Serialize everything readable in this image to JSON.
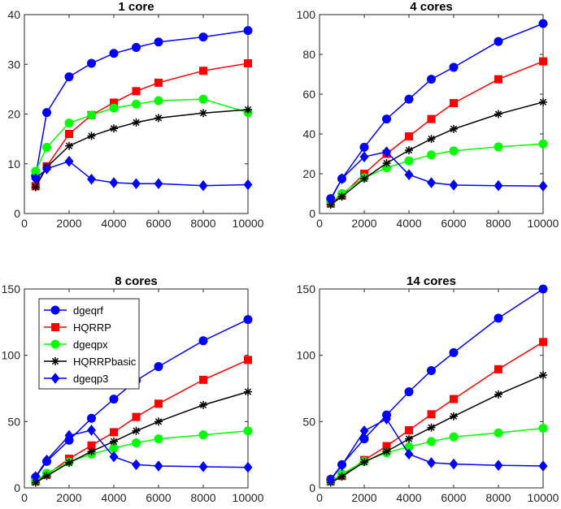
{
  "chart_data": [
    {
      "type": "line",
      "title": "1 core",
      "x": [
        500,
        1000,
        2000,
        3000,
        4000,
        5000,
        6000,
        8000,
        10000
      ],
      "xlim": [
        0,
        10000
      ],
      "ylim": [
        0,
        40
      ],
      "xticks": [
        0,
        2000,
        4000,
        6000,
        8000,
        10000
      ],
      "yticks": [
        0,
        10,
        20,
        30,
        40
      ],
      "xlabel": "",
      "ylabel": "",
      "grid": false,
      "series": [
        {
          "name": "dgeqrf",
          "color": "#0000ff",
          "marker": "circle",
          "values": [
            7.5,
            20.3,
            27.5,
            30.2,
            32.2,
            33.4,
            34.5,
            35.5,
            36.8
          ]
        },
        {
          "name": "HQRRP",
          "color": "#ff0000",
          "marker": "square",
          "values": [
            5.5,
            9.5,
            16.0,
            19.8,
            22.3,
            24.6,
            26.3,
            28.7,
            30.2
          ]
        },
        {
          "name": "dgeqpx",
          "color": "#00ff00",
          "marker": "circle",
          "values": [
            8.5,
            13.3,
            18.2,
            19.8,
            21.2,
            22.0,
            22.7,
            23.0,
            20.3
          ]
        },
        {
          "name": "HQRRPbasic",
          "color": "#000000",
          "marker": "asterisk",
          "values": [
            5.3,
            9.3,
            13.6,
            15.6,
            17.1,
            18.3,
            19.2,
            20.2,
            20.9
          ]
        },
        {
          "name": "dgeqp3",
          "color": "#0000ff",
          "marker": "diamond",
          "values": [
            7.0,
            9.0,
            10.5,
            6.9,
            6.2,
            6.0,
            6.0,
            5.6,
            5.8
          ]
        }
      ]
    },
    {
      "type": "line",
      "title": "4 cores",
      "x": [
        500,
        1000,
        2000,
        3000,
        4000,
        5000,
        6000,
        8000,
        10000
      ],
      "xlim": [
        0,
        10000
      ],
      "ylim": [
        0,
        100
      ],
      "xticks": [
        0,
        2000,
        4000,
        6000,
        8000,
        10000
      ],
      "yticks": [
        0,
        20,
        40,
        60,
        80,
        100
      ],
      "xlabel": "",
      "ylabel": "",
      "grid": false,
      "series": [
        {
          "name": "dgeqrf",
          "color": "#0000ff",
          "marker": "circle",
          "values": [
            7.5,
            17.5,
            33.3,
            47.5,
            57.5,
            67.5,
            73.5,
            86.5,
            95.5
          ]
        },
        {
          "name": "HQRRP",
          "color": "#ff0000",
          "marker": "square",
          "values": [
            5.0,
            9.0,
            20.0,
            30.0,
            38.8,
            47.5,
            55.5,
            67.5,
            76.5
          ]
        },
        {
          "name": "dgeqpx",
          "color": "#00ff00",
          "marker": "circle",
          "values": [
            5.5,
            10.0,
            18.0,
            23.0,
            26.5,
            29.5,
            31.5,
            33.5,
            35.0
          ]
        },
        {
          "name": "HQRRPbasic",
          "color": "#000000",
          "marker": "asterisk",
          "values": [
            4.5,
            8.5,
            17.5,
            25.3,
            31.8,
            37.5,
            42.5,
            50.0,
            56.0
          ]
        },
        {
          "name": "dgeqp3",
          "color": "#0000ff",
          "marker": "diamond",
          "values": [
            7.0,
            17.5,
            28.5,
            31.0,
            19.5,
            15.5,
            14.3,
            14.0,
            13.8
          ]
        }
      ]
    },
    {
      "type": "line",
      "title": "8 cores",
      "x": [
        500,
        1000,
        2000,
        3000,
        4000,
        5000,
        6000,
        8000,
        10000
      ],
      "xlim": [
        0,
        10000
      ],
      "ylim": [
        0,
        150
      ],
      "xticks": [
        0,
        2000,
        4000,
        6000,
        8000,
        10000
      ],
      "yticks": [
        0,
        50,
        100,
        150
      ],
      "xlabel": "",
      "ylabel": "",
      "grid": false,
      "legend": "top-left",
      "series": [
        {
          "name": "dgeqrf",
          "color": "#0000ff",
          "marker": "circle",
          "values": [
            8.0,
            20.0,
            36.0,
            52.5,
            67.0,
            81.0,
            91.5,
            111.0,
            127.0
          ]
        },
        {
          "name": "HQRRP",
          "color": "#ff0000",
          "marker": "square",
          "values": [
            5.0,
            10.0,
            22.0,
            32.0,
            42.0,
            53.5,
            63.5,
            81.5,
            96.5
          ]
        },
        {
          "name": "dgeqpx",
          "color": "#00ff00",
          "marker": "circle",
          "values": [
            5.5,
            11.0,
            19.5,
            25.5,
            30.0,
            34.0,
            37.0,
            40.0,
            43.0
          ]
        },
        {
          "name": "HQRRPbasic",
          "color": "#000000",
          "marker": "asterisk",
          "values": [
            4.0,
            9.0,
            19.0,
            27.5,
            35.0,
            43.0,
            50.0,
            62.5,
            72.5
          ]
        },
        {
          "name": "dgeqp3",
          "color": "#0000ff",
          "marker": "diamond",
          "values": [
            8.5,
            21.0,
            39.5,
            43.5,
            23.5,
            17.5,
            16.5,
            16.0,
            15.5
          ]
        }
      ]
    },
    {
      "type": "line",
      "title": "14 cores",
      "x": [
        500,
        1000,
        2000,
        3000,
        4000,
        5000,
        6000,
        8000,
        10000
      ],
      "xlim": [
        0,
        10000
      ],
      "ylim": [
        0,
        150
      ],
      "xticks": [
        0,
        2000,
        4000,
        6000,
        8000,
        10000
      ],
      "yticks": [
        0,
        50,
        100,
        150
      ],
      "xlabel": "",
      "ylabel": "",
      "grid": false,
      "series": [
        {
          "name": "dgeqrf",
          "color": "#0000ff",
          "marker": "circle",
          "values": [
            6.5,
            17.5,
            37.0,
            55.0,
            72.5,
            88.5,
            102.0,
            128.0,
            150.0
          ]
        },
        {
          "name": "HQRRP",
          "color": "#ff0000",
          "marker": "square",
          "values": [
            5.0,
            9.0,
            21.0,
            31.5,
            43.5,
            55.5,
            67.0,
            89.5,
            110.0
          ]
        },
        {
          "name": "dgeqpx",
          "color": "#00ff00",
          "marker": "circle",
          "values": [
            5.0,
            10.5,
            20.0,
            26.5,
            31.0,
            35.0,
            38.5,
            41.5,
            45.0
          ]
        },
        {
          "name": "HQRRPbasic",
          "color": "#000000",
          "marker": "asterisk",
          "values": [
            4.0,
            8.5,
            19.5,
            27.5,
            37.0,
            45.5,
            54.0,
            70.5,
            85.0
          ]
        },
        {
          "name": "dgeqp3",
          "color": "#0000ff",
          "marker": "diamond",
          "values": [
            6.0,
            17.0,
            43.0,
            52.0,
            25.5,
            19.0,
            18.0,
            17.0,
            16.5
          ]
        }
      ]
    }
  ]
}
